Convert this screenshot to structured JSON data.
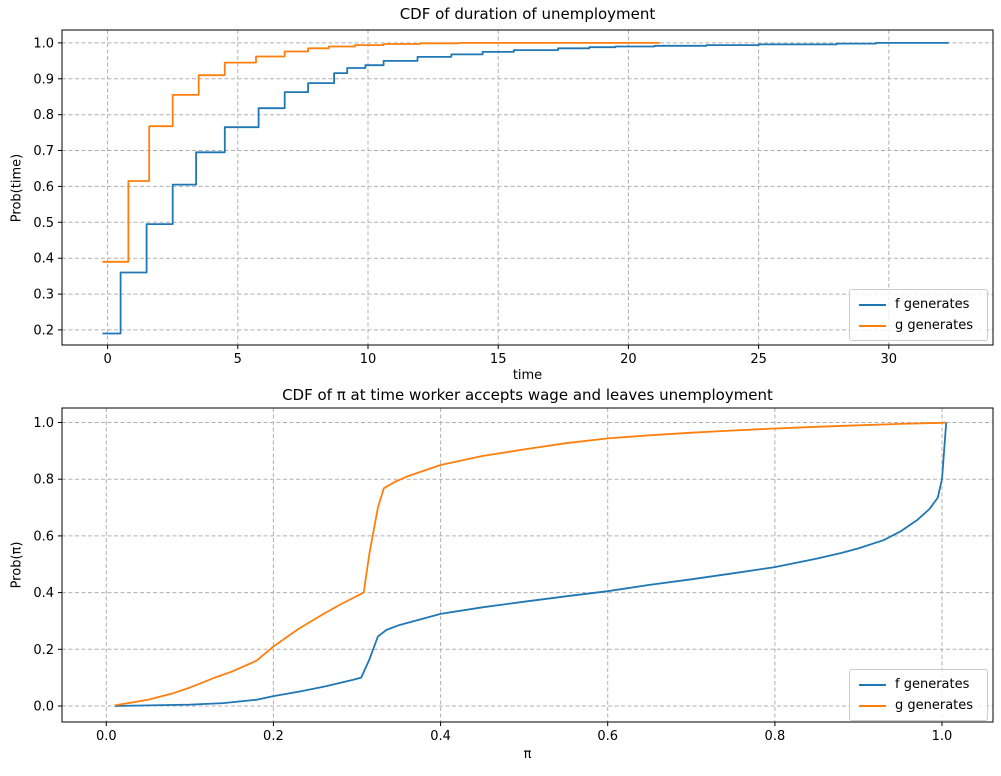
{
  "figure": {
    "background": "#ffffff",
    "grid_color": "#b0b0b0",
    "spine_color": "#000000",
    "text_color": "#000000"
  },
  "chart_data": [
    {
      "type": "step",
      "title": "CDF of duration of unemployment",
      "xlabel": "time",
      "ylabel": "Prob(time)",
      "xlim": [
        -1.75,
        34.0
      ],
      "ylim": [
        0.158,
        1.036
      ],
      "xticks": [
        0,
        5,
        10,
        15,
        20,
        25,
        30
      ],
      "xtick_labels": [
        "0",
        "5",
        "10",
        "15",
        "20",
        "25",
        "30"
      ],
      "yticks": [
        0.2,
        0.3,
        0.4,
        0.5,
        0.6,
        0.7,
        0.8,
        0.9,
        1.0
      ],
      "ytick_labels": [
        "0.2",
        "0.3",
        "0.4",
        "0.5",
        "0.6",
        "0.7",
        "0.8",
        "0.9",
        "1.0"
      ],
      "grid": true,
      "legend_location": "lower right",
      "series": [
        {
          "name": "f generates",
          "color": "#1f77b4",
          "x": [
            -0.2,
            0.5,
            1.5,
            2.5,
            3.4,
            4.5,
            5.8,
            6.8,
            7.7,
            8.7,
            9.2,
            9.9,
            10.6,
            11.9,
            13.2,
            14.4,
            15.6,
            17.3,
            18.5,
            19.5,
            21.0,
            23.0,
            25.0,
            28.0,
            29.5
          ],
          "y": [
            0.19,
            0.36,
            0.495,
            0.605,
            0.695,
            0.765,
            0.818,
            0.863,
            0.888,
            0.916,
            0.93,
            0.938,
            0.95,
            0.961,
            0.968,
            0.975,
            0.98,
            0.985,
            0.988,
            0.99,
            0.992,
            0.994,
            0.996,
            0.998,
            1.0
          ],
          "end": 32.3
        },
        {
          "name": "g generates",
          "color": "#ff7f0e",
          "x": [
            -0.2,
            0.8,
            1.6,
            2.5,
            3.5,
            4.5,
            5.7,
            6.8,
            7.7,
            8.5,
            9.5,
            10.6,
            12.0,
            13.5
          ],
          "y": [
            0.39,
            0.615,
            0.768,
            0.855,
            0.91,
            0.945,
            0.962,
            0.976,
            0.985,
            0.99,
            0.994,
            0.997,
            0.999,
            1.0
          ],
          "end": 21.2
        }
      ]
    },
    {
      "type": "line",
      "title": "CDF of π at time worker accepts wage and leaves unemployment",
      "xlabel": "π",
      "ylabel": "Prob(π)",
      "xlim": [
        -0.053,
        1.061
      ],
      "ylim": [
        -0.0565,
        1.0512
      ],
      "xticks": [
        0.0,
        0.2,
        0.4,
        0.6,
        0.8,
        1.0
      ],
      "xtick_labels": [
        "0.0",
        "0.2",
        "0.4",
        "0.6",
        "0.8",
        "1.0"
      ],
      "yticks": [
        0.0,
        0.2,
        0.4,
        0.6,
        0.8,
        1.0
      ],
      "ytick_labels": [
        "0.0",
        "0.2",
        "0.4",
        "0.6",
        "0.8",
        "1.0"
      ],
      "grid": true,
      "legend_location": "lower right",
      "series": [
        {
          "name": "f generates",
          "color": "#1f77b4",
          "x": [
            0.01,
            0.05,
            0.1,
            0.14,
            0.18,
            0.2,
            0.23,
            0.26,
            0.295,
            0.305,
            0.315,
            0.325,
            0.335,
            0.35,
            0.4,
            0.45,
            0.5,
            0.55,
            0.6,
            0.65,
            0.7,
            0.75,
            0.8,
            0.85,
            0.88,
            0.9,
            0.93,
            0.95,
            0.97,
            0.985,
            0.995,
            1.0,
            1.005
          ],
          "y": [
            0.0,
            0.002,
            0.005,
            0.01,
            0.022,
            0.035,
            0.05,
            0.068,
            0.092,
            0.1,
            0.165,
            0.245,
            0.268,
            0.285,
            0.325,
            0.348,
            0.368,
            0.387,
            0.405,
            0.427,
            0.447,
            0.468,
            0.49,
            0.52,
            0.54,
            0.556,
            0.585,
            0.615,
            0.655,
            0.695,
            0.735,
            0.8,
            1.0
          ]
        },
        {
          "name": "g generates",
          "color": "#ff7f0e",
          "x": [
            0.01,
            0.05,
            0.08,
            0.1,
            0.13,
            0.15,
            0.18,
            0.2,
            0.23,
            0.26,
            0.28,
            0.3,
            0.308,
            0.315,
            0.325,
            0.332,
            0.345,
            0.36,
            0.4,
            0.45,
            0.5,
            0.55,
            0.6,
            0.65,
            0.7,
            0.75,
            0.8,
            0.85,
            0.9,
            0.95,
            1.0,
            1.005
          ],
          "y": [
            0.002,
            0.022,
            0.045,
            0.065,
            0.1,
            0.121,
            0.16,
            0.21,
            0.272,
            0.325,
            0.358,
            0.388,
            0.4,
            0.54,
            0.7,
            0.768,
            0.79,
            0.81,
            0.85,
            0.882,
            0.905,
            0.927,
            0.944,
            0.955,
            0.964,
            0.972,
            0.979,
            0.985,
            0.99,
            0.995,
            0.999,
            1.0
          ]
        }
      ]
    }
  ]
}
